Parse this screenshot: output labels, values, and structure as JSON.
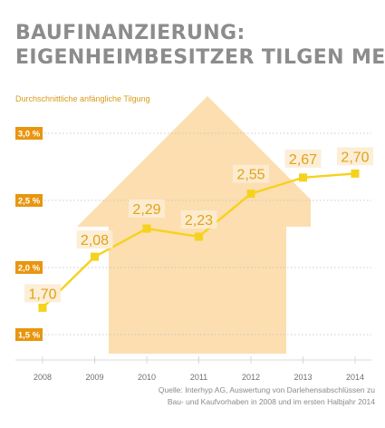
{
  "header": {
    "title_line1": "BAUFINANZIERUNG:",
    "title_line2": "EIGENHEIMBESITZER TILGEN MEHR",
    "subtitle": "Durchschnittliche anfängliche Tilgung"
  },
  "chart_data": {
    "type": "line",
    "title": "BAUFINANZIERUNG: EIGENHEIMBESITZER TILGEN MEHR",
    "subtitle": "Durchschnittliche anfängliche Tilgung",
    "xlabel": "",
    "ylabel": "",
    "categories": [
      "2008",
      "2009",
      "2010",
      "2011",
      "2012",
      "2013",
      "2014"
    ],
    "values": [
      1.7,
      2.08,
      2.29,
      2.23,
      2.55,
      2.67,
      2.7
    ],
    "value_labels": [
      "1,70",
      "2,08",
      "2,29",
      "2,23",
      "2,55",
      "2,67",
      "2,70"
    ],
    "y_ticks": [
      1.5,
      2.0,
      2.5,
      3.0
    ],
    "y_tick_labels": [
      "1,5 %",
      "2,0 %",
      "2,5 %",
      "3,0 %"
    ],
    "ylim": [
      1.5,
      3.0
    ],
    "grid": "dotted horizontal",
    "legend": "none",
    "colors": {
      "line": "#f5d21e",
      "marker": "#f5d21e",
      "house": "#fbd8a2",
      "tick_badge": "#e8960f",
      "label_box": "#fcecd3"
    },
    "background_shape": "house"
  },
  "source": {
    "text": "Quelle: Interhyp AG, Auswertung von Darlehensabschlüssen zu Bau- und Kaufvorhaben in 2008 und im ersten Halbjahr 2014"
  }
}
